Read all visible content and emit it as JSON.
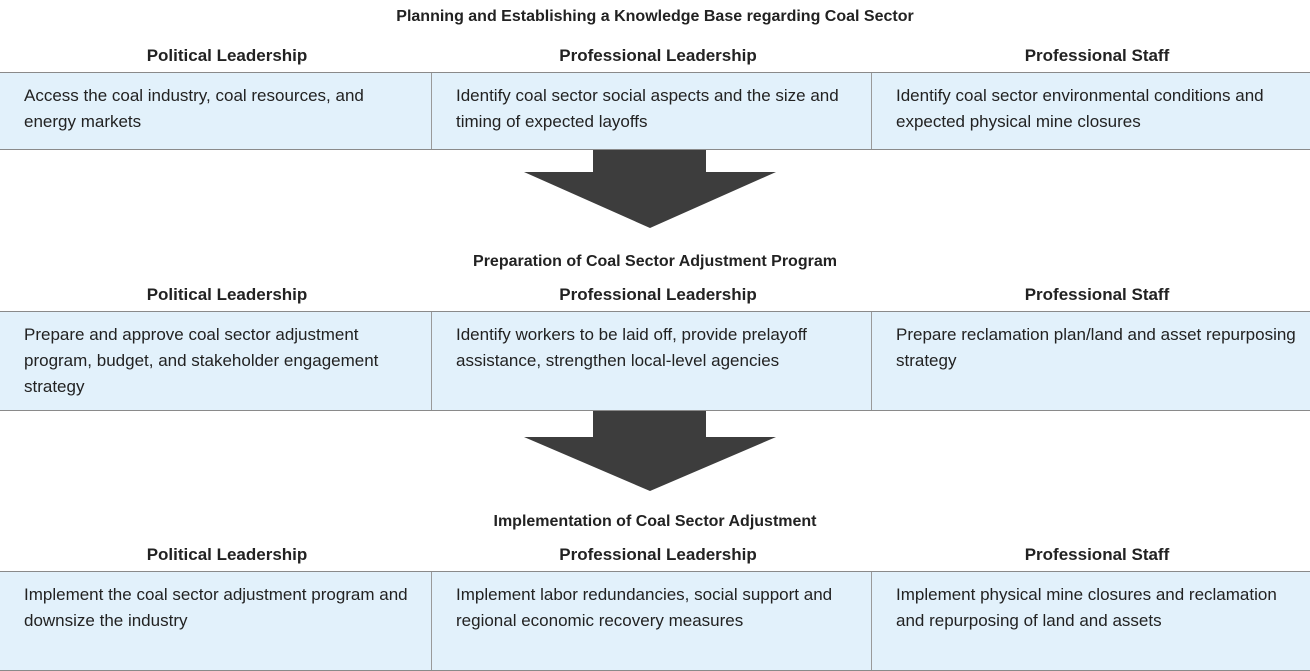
{
  "stages": [
    {
      "title": "Planning and Establishing a Knowledge Base regarding Coal Sector",
      "headers": [
        "Political Leadership",
        "Professional Leadership",
        "Professional Staff"
      ],
      "cells": [
        "Access the coal industry, coal resources, and energy markets",
        "Identify coal sector social aspects and the size and timing of expected layoffs",
        "Identify coal sector environmental conditions and expected physical mine closures"
      ]
    },
    {
      "title": "Preparation of Coal Sector Adjustment Program",
      "headers": [
        "Political Leadership",
        "Professional Leadership",
        "Professional Staff"
      ],
      "cells": [
        "Prepare and approve coal sector adjustment program, budget, and stakeholder engagement strategy",
        "Identify workers to be laid off, provide prelayoff assistance, strengthen local-level agencies",
        "Prepare reclamation plan/land and asset repurposing strategy"
      ]
    },
    {
      "title": "Implementation of Coal Sector Adjustment",
      "headers": [
        "Political Leadership",
        "Professional Leadership",
        "Professional Staff"
      ],
      "cells": [
        "Implement the coal sector adjustment program and downsize the industry",
        "Implement labor redundancies, social support and regional economic recovery measures",
        "Implement physical mine closures and reclamation and repurposing of land and assets"
      ]
    }
  ]
}
